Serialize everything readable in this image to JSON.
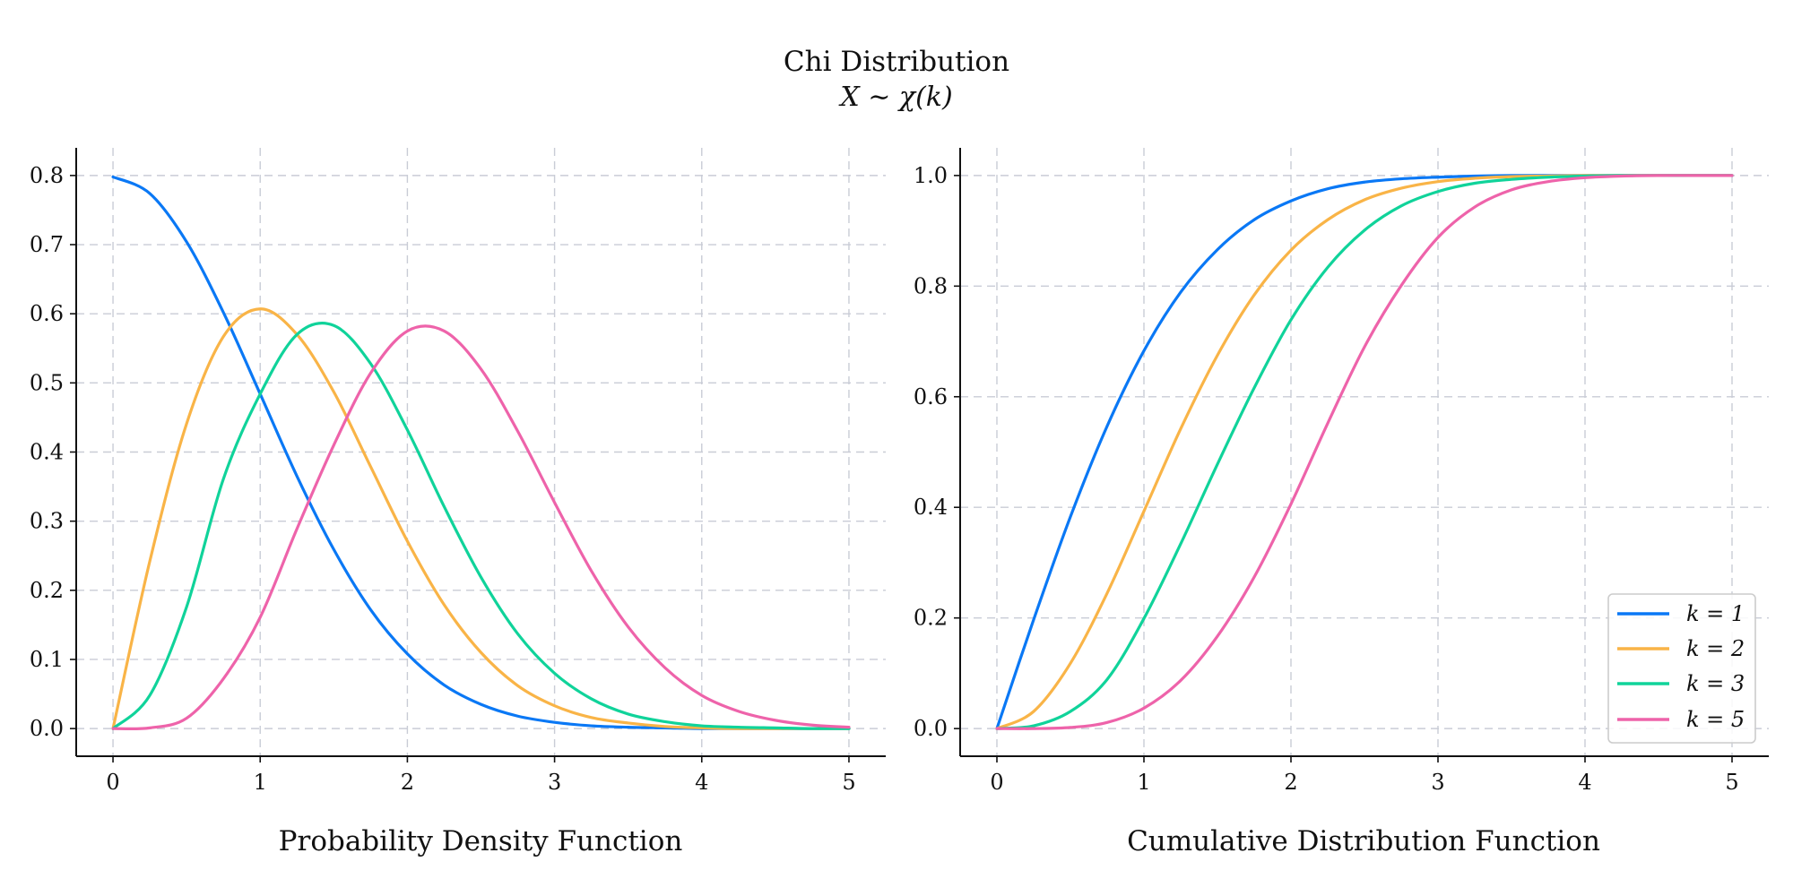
{
  "figure": {
    "title": "Chi Distribution",
    "subtitle": "X ∼ χ(k)"
  },
  "series_colors": {
    "k1": "#0a78f5",
    "k2": "#f9b447",
    "k3": "#10d39a",
    "k5": "#ee63aa"
  },
  "chart_data": [
    {
      "type": "line",
      "title": "Probability Density Function",
      "xlim": [
        -0.25,
        5.25
      ],
      "ylim": [
        -0.04,
        0.84
      ],
      "xticks": [
        0,
        1,
        2,
        3,
        4,
        5
      ],
      "xtick_labels": [
        "0",
        "1",
        "2",
        "3",
        "4",
        "5"
      ],
      "yticks": [
        0.0,
        0.1,
        0.2,
        0.3,
        0.4,
        0.5,
        0.6,
        0.7,
        0.8
      ],
      "ytick_labels": [
        "0.0",
        "0.1",
        "0.2",
        "0.3",
        "0.4",
        "0.5",
        "0.6",
        "0.7",
        "0.8"
      ],
      "grid": true,
      "x": [
        0,
        0.25,
        0.5,
        0.75,
        1,
        1.25,
        1.5,
        1.75,
        2,
        2.25,
        2.5,
        2.75,
        3,
        3.25,
        3.5,
        3.75,
        4,
        4.25,
        4.5,
        4.75,
        5
      ],
      "series": [
        {
          "name": "k = 1",
          "color_key": "k1",
          "values": [
            0.798,
            0.774,
            0.704,
            0.602,
            0.484,
            0.365,
            0.259,
            0.172,
            0.108,
            0.063,
            0.035,
            0.018,
            0.009,
            0.004,
            0.002,
            0.001,
            0.0,
            0.0,
            0.0,
            0.0,
            0.0
          ]
        },
        {
          "name": "k = 2",
          "color_key": "k2",
          "values": [
            0.0,
            0.242,
            0.441,
            0.567,
            0.607,
            0.57,
            0.487,
            0.379,
            0.271,
            0.179,
            0.11,
            0.062,
            0.033,
            0.016,
            0.008,
            0.003,
            0.001,
            0.0,
            0.0,
            0.0,
            0.0
          ]
        },
        {
          "name": "k = 3",
          "color_key": "k3",
          "values": [
            0.0,
            0.048,
            0.176,
            0.361,
            0.484,
            0.57,
            0.583,
            0.528,
            0.432,
            0.321,
            0.219,
            0.137,
            0.08,
            0.043,
            0.021,
            0.01,
            0.004,
            0.002,
            0.001,
            0.0,
            0.0
          ]
        },
        {
          "name": "k = 5",
          "color_key": "k5",
          "values": [
            0.0,
            0.001,
            0.015,
            0.072,
            0.161,
            0.289,
            0.41,
            0.514,
            0.575,
            0.575,
            0.52,
            0.43,
            0.327,
            0.228,
            0.147,
            0.088,
            0.048,
            0.025,
            0.012,
            0.005,
            0.002
          ]
        }
      ]
    },
    {
      "type": "line",
      "title": "Cumulative Distribution Function",
      "xlim": [
        -0.25,
        5.25
      ],
      "ylim": [
        -0.05,
        1.05
      ],
      "xticks": [
        0,
        1,
        2,
        3,
        4,
        5
      ],
      "xtick_labels": [
        "0",
        "1",
        "2",
        "3",
        "4",
        "5"
      ],
      "yticks": [
        0.0,
        0.2,
        0.4,
        0.6,
        0.8,
        1.0
      ],
      "ytick_labels": [
        "0.0",
        "0.2",
        "0.4",
        "0.6",
        "0.8",
        "1.0"
      ],
      "grid": true,
      "legend": "bottom-right",
      "x": [
        0,
        0.25,
        0.5,
        0.75,
        1,
        1.25,
        1.5,
        1.75,
        2,
        2.25,
        2.5,
        2.75,
        3,
        3.25,
        3.5,
        3.75,
        4,
        4.25,
        4.5,
        4.75,
        5
      ],
      "series": [
        {
          "name": "k = 1",
          "color_key": "k1",
          "values": [
            0.0,
            0.197,
            0.383,
            0.547,
            0.683,
            0.789,
            0.866,
            0.92,
            0.954,
            0.976,
            0.988,
            0.994,
            0.997,
            0.999,
            1.0,
            1.0,
            1.0,
            1.0,
            1.0,
            1.0,
            1.0
          ]
        },
        {
          "name": "k = 2",
          "color_key": "k2",
          "values": [
            0.0,
            0.031,
            0.118,
            0.245,
            0.393,
            0.542,
            0.675,
            0.784,
            0.865,
            0.92,
            0.956,
            0.977,
            0.989,
            0.995,
            0.998,
            0.999,
            1.0,
            1.0,
            1.0,
            1.0,
            1.0
          ]
        },
        {
          "name": "k = 3",
          "color_key": "k3",
          "values": [
            0.0,
            0.005,
            0.031,
            0.089,
            0.199,
            0.334,
            0.478,
            0.616,
            0.739,
            0.834,
            0.901,
            0.945,
            0.971,
            0.986,
            0.993,
            0.997,
            0.999,
            1.0,
            1.0,
            1.0,
            1.0
          ]
        },
        {
          "name": "k = 5",
          "color_key": "k5",
          "values": [
            0.0,
            0.0,
            0.002,
            0.011,
            0.037,
            0.087,
            0.167,
            0.274,
            0.406,
            0.552,
            0.69,
            0.801,
            0.888,
            0.943,
            0.974,
            0.989,
            0.996,
            0.999,
            1.0,
            1.0,
            1.0
          ]
        }
      ]
    }
  ]
}
